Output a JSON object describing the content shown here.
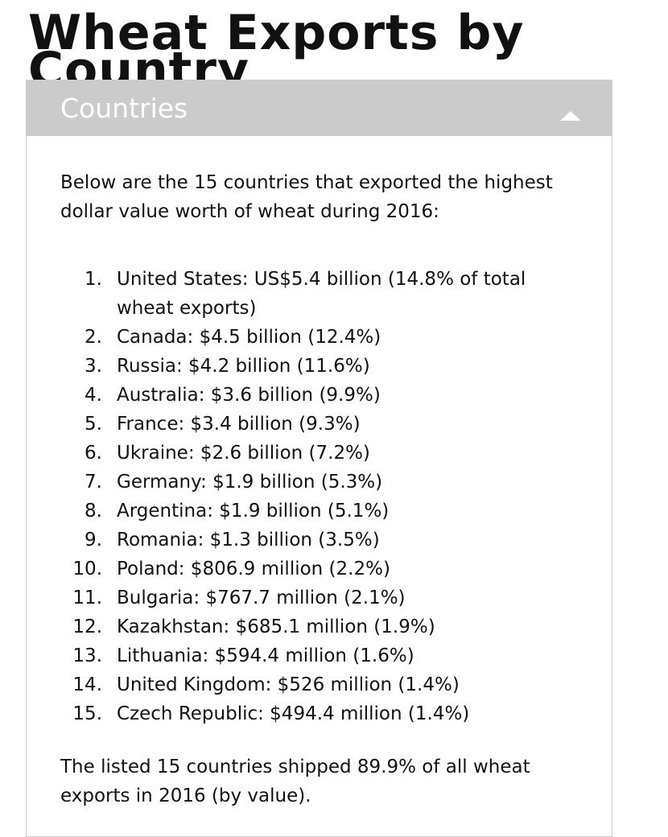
{
  "header": {
    "title": "Wheat Exports by Country"
  },
  "panel": {
    "heading": "Countries",
    "intro": "Below are the 15 countries that exported the highest dollar value worth of wheat during 2016:",
    "list": [
      {
        "number": "1.",
        "text": "United States: US$5.4 billion (14.8% of total wheat exports)"
      },
      {
        "number": "2.",
        "text": "Canada: $4.5 billion (12.4%)"
      },
      {
        "number": "3.",
        "text": "Russia: $4.2 billion (11.6%)"
      },
      {
        "number": "4.",
        "text": "Australia: $3.6 billion (9.9%)"
      },
      {
        "number": "5.",
        "text": "France: $3.4 billion (9.3%)"
      },
      {
        "number": "6.",
        "text": "Ukraine: $2.6 billion (7.2%)"
      },
      {
        "number": "7.",
        "text": "Germany: $1.9 billion (5.3%)"
      },
      {
        "number": "8.",
        "text": "Argentina: $1.9 billion (5.1%)"
      },
      {
        "number": "9.",
        "text": "Romania: $1.3 billion (3.5%)"
      },
      {
        "number": "10.",
        "text": "Poland: $806.9 million (2.2%)"
      },
      {
        "number": "11.",
        "text": "Bulgaria: $767.7 million (2.1%)"
      },
      {
        "number": "12.",
        "text": "Kazakhstan: $685.1 million (1.9%)"
      },
      {
        "number": "13.",
        "text": "Lithuania: $594.4 million (1.6%)"
      },
      {
        "number": "14.",
        "text": "United Kingdom: $526 million (1.4%)"
      },
      {
        "number": "15.",
        "text": "Czech Republic: $494.4 million (1.4%)"
      }
    ],
    "footer": "The listed 15 countries shipped 89.9% of all wheat exports in 2016 (by value)."
  }
}
